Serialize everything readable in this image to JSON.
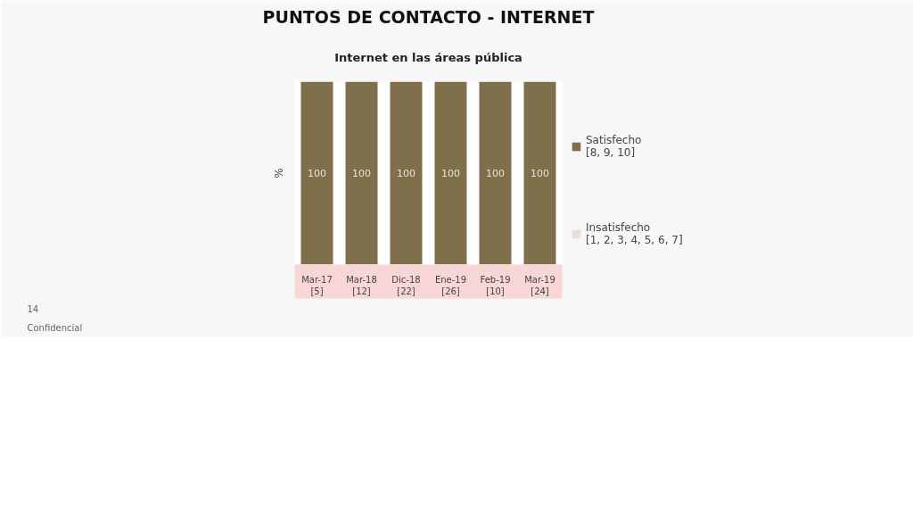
{
  "chart_data": {
    "type": "bar",
    "title": "PUNTOS DE CONTACTO - INTERNET",
    "subtitle": "Internet en las áreas pública",
    "ylabel": "%",
    "categories": [
      "Mar-17\n[5]",
      "Mar-18\n[12]",
      "Dic-18\n[22]",
      "Ene-19\n[26]",
      "Feb-19\n[10]",
      "Mar-19\n[24]"
    ],
    "stacked": true,
    "legend": "right",
    "series": [
      {
        "name": "Satisfecho\n[8, 9, 10]",
        "color": "#7f6f4a",
        "values": [
          100,
          100,
          100,
          100,
          100,
          100
        ],
        "value_labels": [
          "100",
          "100",
          "100",
          "100",
          "100",
          "100"
        ]
      },
      {
        "name": "Insatisfecho\n[1, 2, 3, 4, 5, 6, 7]",
        "color": "#e6e0d8",
        "values": [
          0,
          0,
          0,
          0,
          0,
          0
        ],
        "value_labels": [
          null,
          null,
          null,
          null,
          null,
          null
        ]
      }
    ],
    "annotations": [
      "14",
      "Confidencial"
    ]
  }
}
